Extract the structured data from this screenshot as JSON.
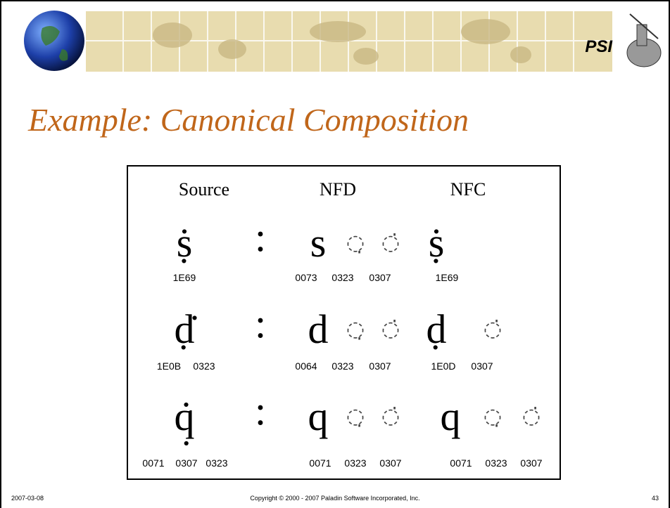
{
  "header": {
    "logo": "PSI"
  },
  "title": "Example: Canonical Composition",
  "table": {
    "headers": [
      "Source",
      "NFD",
      "NFC"
    ],
    "rows": [
      {
        "separator": ":",
        "cells": [
          {
            "glyphs": [
              "ṩ"
            ],
            "codes": [
              "1E69"
            ]
          },
          {
            "glyphs": [
              "s",
              "◌̣",
              "◌̇"
            ],
            "codes": [
              "0073",
              "0323",
              "0307"
            ]
          },
          {
            "glyphs": [
              "ṩ"
            ],
            "codes": [
              "1E69"
            ]
          }
        ]
      },
      {
        "separator": ":",
        "cells": [
          {
            "glyphs": [
              "ḍ̇"
            ],
            "codes": [
              "1E0B",
              "0323"
            ]
          },
          {
            "glyphs": [
              "d",
              "◌̣",
              "◌̇"
            ],
            "codes": [
              "0064",
              "0323",
              "0307"
            ]
          },
          {
            "glyphs": [
              "ḍ",
              "◌̇"
            ],
            "codes": [
              "1E0D",
              "0307"
            ]
          }
        ]
      },
      {
        "separator": ":",
        "cells": [
          {
            "glyphs": [
              "q̣̇"
            ],
            "codes": [
              "0071",
              "0307",
              "0323"
            ]
          },
          {
            "glyphs": [
              "q",
              "◌̣",
              "◌̇"
            ],
            "codes": [
              "0071",
              "0323",
              "0307"
            ]
          },
          {
            "glyphs": [
              "q",
              "◌̣",
              "◌̇"
            ],
            "codes": [
              "0071",
              "0323",
              "0307"
            ]
          }
        ]
      }
    ]
  },
  "footer": {
    "date": "2007-03-08",
    "copyright": "Copyright © 2000 - 2007 Paladin Software Incorporated, Inc.",
    "page": "43"
  }
}
